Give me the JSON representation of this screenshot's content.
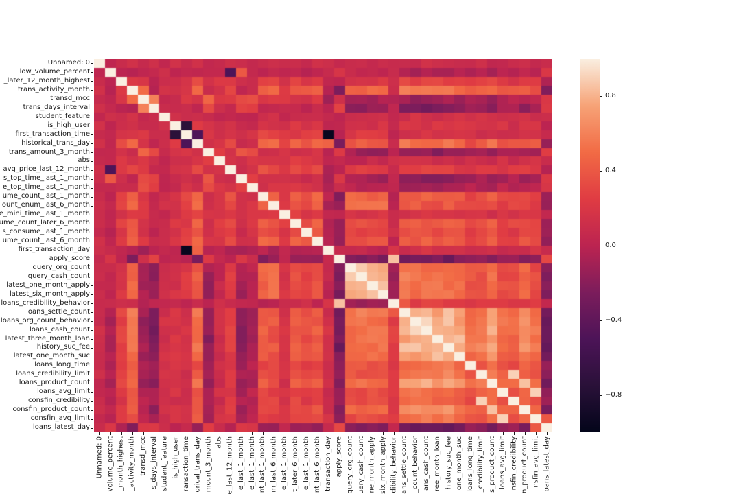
{
  "figure": {
    "background": "#ffffff",
    "text_color": "#1a1a1a"
  },
  "chart_data": {
    "type": "heatmap",
    "subtype": "correlation-matrix",
    "size": 42,
    "grid": false,
    "y_labels": [
      "Unnamed: 0",
      "low_volume_percent",
      "_later_12_month_highest",
      "trans_activity_month",
      "transd_mcc",
      "trans_days_interval",
      "student_feature",
      "is_high_user",
      "first_transaction_time",
      "historical_trans_day",
      "trans_amount_3_month",
      "abs",
      "avg_price_last_12_month",
      "s_top_time_last_1_month",
      "e_top_time_last_1_month",
      "ume_count_last_1_month",
      "ount_enum_last_6_month",
      "e_mini_time_last_1_month",
      "ume_count_later_6_month",
      "s_consume_last_1_month",
      "ume_count_last_6_month",
      "first_transaction_day",
      "apply_score",
      "query_org_count",
      "query_cash_count",
      "latest_one_month_apply",
      "latest_six_month_apply",
      "loans_credibility_behavior",
      "loans_settle_count",
      "loans_org_count_behavior",
      "loans_cash_count",
      "latest_three_month_loan",
      "history_suc_fee",
      "latest_one_month_suc",
      "loans_long_time",
      "loans_credibility_limit",
      "loans_product_count",
      "loans_avg_limit",
      "consfin_credibility",
      "consfin_product_count",
      "consfin_avg_limit",
      "loans_latest_day"
    ],
    "x_labels": [
      "Unnamed: 0",
      "volume_percent",
      "_month_highest",
      "_activity_month",
      "transd_mcc",
      "s_days_interval",
      "student_feature",
      "is_high_user",
      "ransaction_time",
      "orical_trans_day",
      "mount_3_month",
      "abs",
      "e_last_12_month",
      "e_last_1_month",
      "e_last_1_month",
      "nt_last_1_month",
      "m_last_6_month",
      "e_last_1_month",
      "t_later_6_month",
      "e_last_1_month",
      "nt_last_6_month",
      "transaction_day",
      "apply_score",
      "query_org_count",
      "uery_cash_count",
      "ne_month_apply",
      "six_month_apply",
      "dibility_behavior",
      "ans_settle_count",
      "_count_behavior",
      "ans_cash_count",
      "ree_month_loan",
      "history_suc_fee",
      "one_month_suc",
      "loans_long_time",
      "_credibility_limit",
      "s_product_count",
      "loans_avg_limit",
      "nsfin_credibility",
      "n_product_count",
      "nsfin_avg_limit",
      "oans_latest_day"
    ],
    "vmin": -1,
    "vmax": 1,
    "colormap": {
      "name": "rocket",
      "stops": [
        [
          0.0,
          "#03051A"
        ],
        [
          0.125,
          "#2A1139"
        ],
        [
          0.25,
          "#4D1458"
        ],
        [
          0.375,
          "#7C1D5C"
        ],
        [
          0.5,
          "#BC2451"
        ],
        [
          0.625,
          "#E03C43"
        ],
        [
          0.75,
          "#F26B45"
        ],
        [
          0.875,
          "#F7A377"
        ],
        [
          1.0,
          "#FAEFE1"
        ]
      ]
    },
    "colorbar": {
      "ticks": [
        {
          "label": "0.8",
          "value": 0.8
        },
        {
          "label": "0.4",
          "value": 0.4
        },
        {
          "label": "0.0",
          "value": 0.0
        },
        {
          "label": "−0.4",
          "value": -0.4
        },
        {
          "label": "−0.8",
          "value": -0.8
        }
      ]
    },
    "matrix_model": {
      "comment_type": "low_rank_approximation_read_from_pixels",
      "diagonal": 1.0,
      "baseline": 0.08,
      "jitter_amplitude": 0.12,
      "factors": {
        "f1_credit": [
          0.0,
          -0.15,
          0.2,
          0.45,
          -0.25,
          -0.35,
          0.05,
          0.1,
          0.0,
          0.4,
          -0.3,
          0.05,
          0.15,
          -0.3,
          -0.2,
          0.25,
          0.2,
          0.05,
          0.3,
          0.25,
          0.3,
          0.15,
          -0.35,
          0.25,
          0.25,
          0.25,
          0.25,
          0.35,
          0.75,
          0.8,
          0.8,
          0.75,
          0.8,
          0.7,
          0.5,
          0.55,
          0.75,
          0.5,
          0.45,
          0.6,
          0.5,
          -0.45
        ],
        "f2_transaction": [
          0.05,
          -0.1,
          0.25,
          0.35,
          0.5,
          0.2,
          0.0,
          0.15,
          0.3,
          0.5,
          0.45,
          0.3,
          0.4,
          0.3,
          0.35,
          0.45,
          0.4,
          0.3,
          0.45,
          0.4,
          0.5,
          -0.25,
          -0.15,
          0.1,
          0.1,
          0.08,
          0.1,
          -0.1,
          0.1,
          0.08,
          0.08,
          0.05,
          0.12,
          0.08,
          0.05,
          0.1,
          0.08,
          0.1,
          0.08,
          0.08,
          0.1,
          -0.05
        ],
        "f3_query": [
          0.0,
          0.0,
          0.05,
          0.3,
          -0.15,
          -0.2,
          0.05,
          0.05,
          0.15,
          0.25,
          -0.2,
          -0.1,
          0.1,
          -0.15,
          -0.1,
          0.35,
          0.4,
          0.05,
          0.2,
          0.15,
          0.2,
          -0.1,
          -0.3,
          0.75,
          0.8,
          0.8,
          0.8,
          -0.35,
          0.35,
          0.3,
          0.3,
          0.3,
          0.3,
          0.3,
          0.2,
          0.2,
          0.3,
          0.15,
          0.15,
          0.3,
          0.15,
          -0.2
        ]
      },
      "notable_cells": [
        [
          1,
          12,
          -0.5
        ],
        [
          1,
          13,
          0.4
        ],
        [
          3,
          4,
          0.5
        ],
        [
          4,
          5,
          0.6
        ],
        [
          7,
          8,
          -0.75
        ],
        [
          8,
          9,
          -0.5
        ],
        [
          8,
          21,
          -0.97
        ],
        [
          9,
          21,
          0.45
        ],
        [
          22,
          27,
          0.85
        ],
        [
          23,
          24,
          0.88
        ],
        [
          25,
          26,
          0.85
        ],
        [
          27,
          28,
          0.4
        ],
        [
          29,
          30,
          0.92
        ],
        [
          31,
          33,
          0.85
        ],
        [
          35,
          38,
          0.9
        ],
        [
          36,
          39,
          0.85
        ],
        [
          37,
          40,
          0.9
        ],
        [
          40,
          41,
          0.4
        ]
      ]
    }
  }
}
